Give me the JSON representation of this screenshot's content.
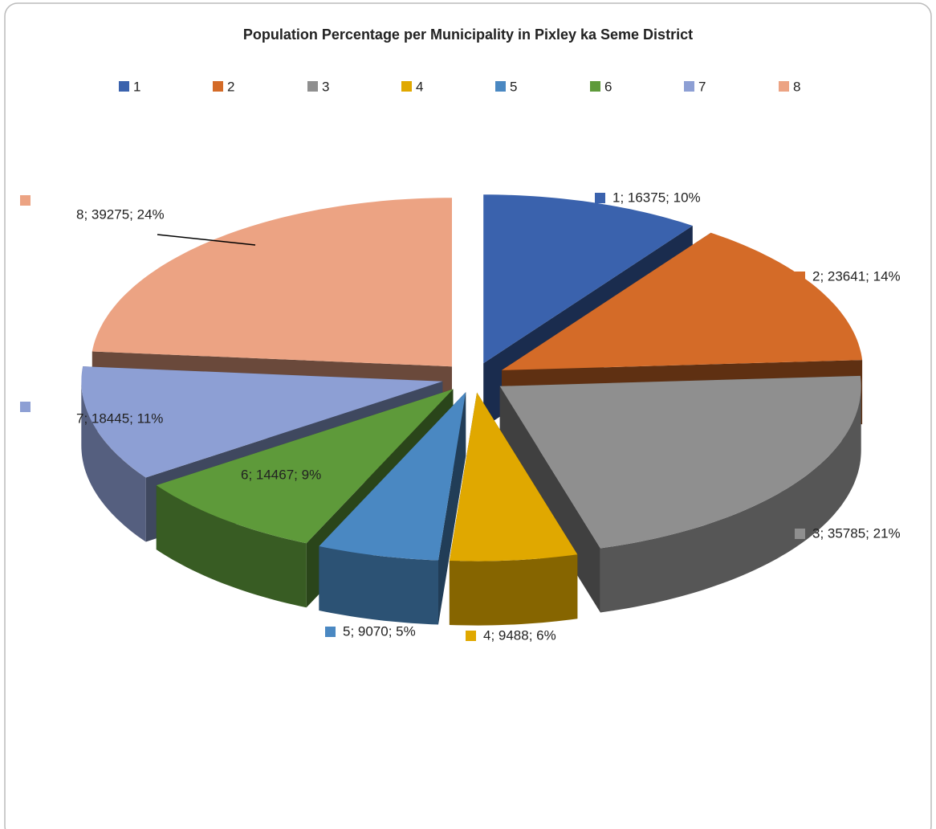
{
  "chart_data": {
    "type": "pie3d",
    "title": "Population Percentage per Municipality in Pixley ka Seme District",
    "categories": [
      "1",
      "2",
      "3",
      "4",
      "5",
      "6",
      "7",
      "8"
    ],
    "values": [
      16375,
      23641,
      35785,
      9488,
      9070,
      14467,
      18445,
      39275
    ],
    "value_labels": [
      "1; 16375; 10%",
      "2; 23641; 14%",
      "3; 35785; 21%",
      "4; 9488; 6%",
      "5; 9070; 5%",
      "6; 14467; 9%",
      "7; 18445; 11%",
      "8; 39275; 24%"
    ],
    "colors": [
      "#3a62ad",
      "#d46b28",
      "#8f8f8f",
      "#e0a800",
      "#4a88c2",
      "#5e9a3a",
      "#8d9fd4",
      "#eca383"
    ],
    "legend": "top"
  }
}
